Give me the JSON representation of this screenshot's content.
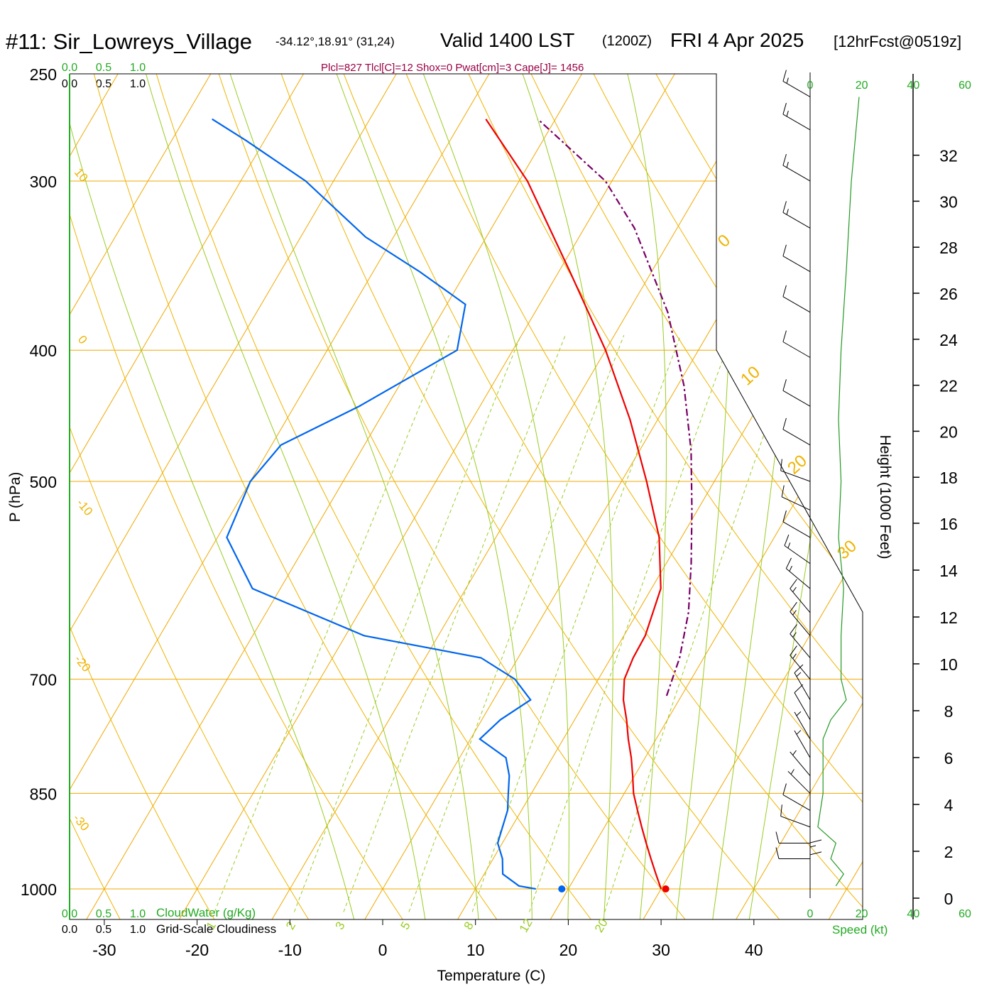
{
  "header": {
    "station": "#11: Sir_Lowreys_Village",
    "coords": "-34.12°,18.91° (31,24)",
    "valid": "Valid 1400 LST",
    "zulu": "(1200Z)",
    "date": "FRI 4 Apr 2025",
    "forecast": "[12hrFcst@0519z]"
  },
  "indices": "Plcl=827 Tlcl[C]=12 Shox=0 Pwat[cm]=3 Cape[J]= 1456",
  "chart_data": {
    "type": "line",
    "title": "#11: Sir_Lowreys_Village",
    "xlabel": "Temperature (C)",
    "ylabel": "P (hPa)",
    "y2label": "Height (1000 Feet)",
    "xlim": [
      -34,
      36
    ],
    "ylim": [
      1000,
      250
    ],
    "x_ticks": [
      "-30",
      "-20",
      "-10",
      "0",
      "10",
      "20",
      "30",
      "40"
    ],
    "p_ticks": [
      {
        "label": "250",
        "p": 250
      },
      {
        "label": "300",
        "p": 300
      },
      {
        "label": "400",
        "p": 400
      },
      {
        "label": "500",
        "p": 500
      },
      {
        "label": "700",
        "p": 700
      },
      {
        "label": "850",
        "p": 850
      },
      {
        "label": "1000",
        "p": 1000
      }
    ],
    "height_ticks": [
      {
        "label": "0",
        "kft": 0
      },
      {
        "label": "2",
        "kft": 2
      },
      {
        "label": "4",
        "kft": 4
      },
      {
        "label": "6",
        "kft": 6
      },
      {
        "label": "8",
        "kft": 8
      },
      {
        "label": "10",
        "kft": 10
      },
      {
        "label": "12",
        "kft": 12
      },
      {
        "label": "14",
        "kft": 14
      },
      {
        "label": "16",
        "kft": 16
      },
      {
        "label": "18",
        "kft": 18
      },
      {
        "label": "20",
        "kft": 20
      },
      {
        "label": "22",
        "kft": 22
      },
      {
        "label": "24",
        "kft": 24
      },
      {
        "label": "26",
        "kft": 26
      },
      {
        "label": "28",
        "kft": 28
      },
      {
        "label": "30",
        "kft": 30
      },
      {
        "label": "32",
        "kft": 32
      }
    ],
    "temperature": {
      "color": "#ee0000",
      "points": [
        [
          30.0,
          1000
        ],
        [
          28.5,
          975
        ],
        [
          27.0,
          950
        ],
        [
          25.5,
          925
        ],
        [
          24.0,
          900
        ],
        [
          22.5,
          875
        ],
        [
          21.0,
          850
        ],
        [
          19.8,
          825
        ],
        [
          18.5,
          800
        ],
        [
          17.0,
          775
        ],
        [
          15.6,
          750
        ],
        [
          14.0,
          725
        ],
        [
          12.8,
          700
        ],
        [
          12.4,
          675
        ],
        [
          12.3,
          650
        ],
        [
          11.0,
          600
        ],
        [
          7.6,
          550
        ],
        [
          2.7,
          500
        ],
        [
          -3.0,
          450
        ],
        [
          -10.0,
          400
        ],
        [
          -18.8,
          350
        ],
        [
          -29.1,
          300
        ],
        [
          -37.5,
          270
        ]
      ]
    },
    "dewpoint": {
      "color": "#0066ee",
      "points": [
        [
          16.5,
          1000
        ],
        [
          14.5,
          995
        ],
        [
          12.0,
          975
        ],
        [
          11.0,
          950
        ],
        [
          9.5,
          925
        ],
        [
          9.0,
          900
        ],
        [
          8.5,
          875
        ],
        [
          7.5,
          850
        ],
        [
          6.5,
          825
        ],
        [
          5.0,
          800
        ],
        [
          1.0,
          775
        ],
        [
          2.0,
          750
        ],
        [
          4.0,
          725
        ],
        [
          1.0,
          700
        ],
        [
          -4.0,
          675
        ],
        [
          -18.0,
          650
        ],
        [
          -33.0,
          600
        ],
        [
          -39.0,
          550
        ],
        [
          -40.0,
          500
        ],
        [
          -39.0,
          470
        ],
        [
          -33.0,
          440
        ],
        [
          -26.0,
          400
        ],
        [
          -28.0,
          370
        ],
        [
          -35.0,
          350
        ],
        [
          -43.0,
          330
        ],
        [
          -53.0,
          300
        ],
        [
          -62.0,
          280
        ],
        [
          -67.0,
          270
        ]
      ]
    },
    "parcel": {
      "color": "#770066",
      "points": [
        [
          18.4,
          720
        ],
        [
          17.4,
          675
        ],
        [
          15.5,
          625
        ],
        [
          12.7,
          575
        ],
        [
          9.4,
          525
        ],
        [
          5.6,
          475
        ],
        [
          0.7,
          425
        ],
        [
          -5.7,
          375
        ],
        [
          -14.6,
          325
        ],
        [
          -20.7,
          300
        ],
        [
          -31.9,
          270
        ]
      ]
    },
    "surface_temp": {
      "t": 30.5,
      "p": 1000,
      "color": "#ee0000"
    },
    "surface_dew": {
      "t": 19.3,
      "p": 1000,
      "color": "#0066ee"
    },
    "isotherm_labels": [
      {
        "t": 0,
        "label": "0"
      },
      {
        "t": 10,
        "label": "10"
      },
      {
        "t": 20,
        "label": "20"
      },
      {
        "t": 30,
        "label": "30"
      }
    ],
    "left_isotherm_labels": [
      "10",
      "0",
      "-10",
      "-20",
      "-30"
    ],
    "mixing_ratio_labels": [
      "1",
      "2",
      "3",
      "5",
      "8",
      "12",
      "20"
    ],
    "mixing_ratios": [
      1,
      2,
      3,
      5,
      8,
      12,
      20
    ],
    "wind_profile": {
      "xlim": [
        0,
        60
      ],
      "ticks": [
        "0",
        "20",
        "40",
        "60"
      ],
      "xlabel": "Speed (kt)",
      "color": "#229922",
      "points": [
        [
          10,
          995
        ],
        [
          13,
          975
        ],
        [
          8,
          950
        ],
        [
          10,
          925
        ],
        [
          3,
          900
        ],
        [
          4,
          875
        ],
        [
          5,
          850
        ],
        [
          5,
          825
        ],
        [
          5,
          800
        ],
        [
          5,
          775
        ],
        [
          8,
          750
        ],
        [
          14,
          725
        ],
        [
          12,
          700
        ],
        [
          12,
          675
        ],
        [
          12,
          650
        ],
        [
          13,
          600
        ],
        [
          11,
          550
        ],
        [
          12,
          500
        ],
        [
          11,
          450
        ],
        [
          12,
          400
        ],
        [
          14,
          350
        ],
        [
          16,
          300
        ],
        [
          19,
          260
        ]
      ]
    },
    "wind_barbs": [
      {
        "p": 995,
        "dir": 0,
        "spd": 10
      },
      {
        "p": 975,
        "dir": 0,
        "spd": 15
      },
      {
        "p": 950,
        "dir": 270,
        "spd": 10
      },
      {
        "p": 925,
        "dir": 270,
        "spd": 10
      },
      {
        "p": 900,
        "dir": 290,
        "spd": 10
      },
      {
        "p": 875,
        "dir": 300,
        "spd": 10
      },
      {
        "p": 850,
        "dir": 315,
        "spd": 5
      },
      {
        "p": 825,
        "dir": 320,
        "spd": 5
      },
      {
        "p": 800,
        "dir": 330,
        "spd": 5
      },
      {
        "p": 775,
        "dir": 330,
        "spd": 5
      },
      {
        "p": 750,
        "dir": 330,
        "spd": 10
      },
      {
        "p": 725,
        "dir": 330,
        "spd": 15
      },
      {
        "p": 700,
        "dir": 320,
        "spd": 15
      },
      {
        "p": 675,
        "dir": 320,
        "spd": 15
      },
      {
        "p": 650,
        "dir": 320,
        "spd": 15
      },
      {
        "p": 625,
        "dir": 320,
        "spd": 15
      },
      {
        "p": 600,
        "dir": 310,
        "spd": 15
      },
      {
        "p": 575,
        "dir": 305,
        "spd": 15
      },
      {
        "p": 550,
        "dir": 300,
        "spd": 10
      },
      {
        "p": 525,
        "dir": 295,
        "spd": 10
      },
      {
        "p": 500,
        "dir": 290,
        "spd": 10
      },
      {
        "p": 470,
        "dir": 300,
        "spd": 10
      },
      {
        "p": 440,
        "dir": 300,
        "spd": 10
      },
      {
        "p": 405,
        "dir": 300,
        "spd": 10
      },
      {
        "p": 375,
        "dir": 300,
        "spd": 10
      },
      {
        "p": 350,
        "dir": 300,
        "spd": 10
      },
      {
        "p": 325,
        "dir": 300,
        "spd": 15
      },
      {
        "p": 300,
        "dir": 300,
        "spd": 15
      },
      {
        "p": 275,
        "dir": 300,
        "spd": 15
      },
      {
        "p": 260,
        "dir": 300,
        "spd": 15
      }
    ]
  },
  "cloud_axis": {
    "water_ticks": [
      "0.0",
      "0.5",
      "1.0"
    ],
    "cloudiness_ticks": [
      "0.0",
      "0.5",
      "1.0"
    ],
    "water_label": "CloudWater (g/Kg)",
    "cloudiness_label": "Grid-Scale Cloudiness"
  },
  "colors": {
    "isotherm": "#f0a800",
    "dry_adiabat": "#f0b400",
    "moist_adiabat": "#99cc22",
    "mixing_ratio": "#99cc22",
    "cloud_axis": "#22aa22"
  }
}
